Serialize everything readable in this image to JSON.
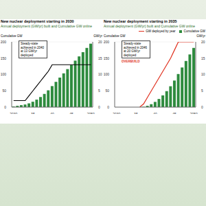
{
  "chart_data": [
    {
      "type": "bar",
      "title": "New nuclear deployment starting in 2030",
      "subtitle": "Annual deployment (GW/yr) built and Cumulative GW online",
      "y_label": "Cumulative GW",
      "y2_label": "GW/yr",
      "categories": [
        "2030",
        null,
        null,
        null,
        null,
        "35",
        null,
        null,
        null,
        null,
        "40",
        null,
        null,
        null,
        null,
        "45",
        null,
        null,
        null,
        null,
        "2050"
      ],
      "series": [
        {
          "name": "Cumulative GW",
          "type": "bar",
          "color": "#2e8b3e",
          "values": [
            2,
            4,
            6,
            8,
            11.5,
            16.5,
            23,
            31,
            40.5,
            51.5,
            64.5,
            77.5,
            90.5,
            103.5,
            116.5,
            129.5,
            142.5,
            155.5,
            168.5,
            181.5,
            194.5
          ]
        },
        {
          "name": "GW deployed by year",
          "type": "line",
          "axis": "y2",
          "color": "#000000",
          "values": [
            2,
            2,
            2,
            2,
            3.5,
            5,
            6.5,
            8,
            9.5,
            11,
            13,
            13,
            13,
            13,
            13,
            13,
            13,
            13,
            13,
            13,
            13
          ]
        }
      ],
      "ylim": [
        0,
        200
      ],
      "yticks": [
        0,
        50,
        100,
        150,
        200
      ],
      "y2lim": [
        0,
        20
      ],
      "y2ticks": [
        0,
        5,
        10,
        15,
        20
      ],
      "annotations": [
        {
          "text": "Steady-state achieved in 2040 at 13 GW/yr deployed",
          "color": "#000000"
        }
      ]
    },
    {
      "type": "bar",
      "title": "New nuclear deployment starting in 2035",
      "subtitle": "Annual deployment (GW/yr) built and Cumulative GW online",
      "y_label": "Cumulative GW",
      "y2_label": "GW/yr",
      "legend": "top",
      "categories": [
        "2030",
        null,
        null,
        null,
        null,
        "35",
        null,
        null,
        null,
        null,
        "40",
        null,
        null,
        null,
        null,
        "45",
        null,
        null,
        null,
        null,
        "2050"
      ],
      "series": [
        {
          "name": "GW deployed by year",
          "type": "line",
          "axis": "y2",
          "color": "#e0301e",
          "values": [
            null,
            null,
            null,
            null,
            null,
            null,
            0,
            1,
            3,
            5,
            7,
            9,
            11,
            13,
            15,
            17.5,
            20,
            20,
            20,
            20,
            20
          ]
        },
        {
          "name": "Cumulative GW",
          "type": "bar",
          "color": "#2e8b3e",
          "values": [
            null,
            null,
            null,
            null,
            null,
            null,
            null,
            1,
            4,
            9,
            16,
            25,
            36,
            49,
            64,
            81.5,
            101.5,
            121.5,
            141.5,
            161.5,
            181.5
          ]
        }
      ],
      "ylim": [
        0,
        200
      ],
      "yticks": [
        0,
        50,
        100,
        150,
        200
      ],
      "y2lim": [
        0,
        20
      ],
      "y2ticks": [
        0,
        5,
        10,
        15,
        20
      ],
      "annotations": [
        {
          "text": "Steady-state achieved in 2046 at 20 GW/yr deployed",
          "color": "#000000"
        },
        {
          "text": "OVERBUILD",
          "color": "#e0301e"
        }
      ]
    }
  ]
}
